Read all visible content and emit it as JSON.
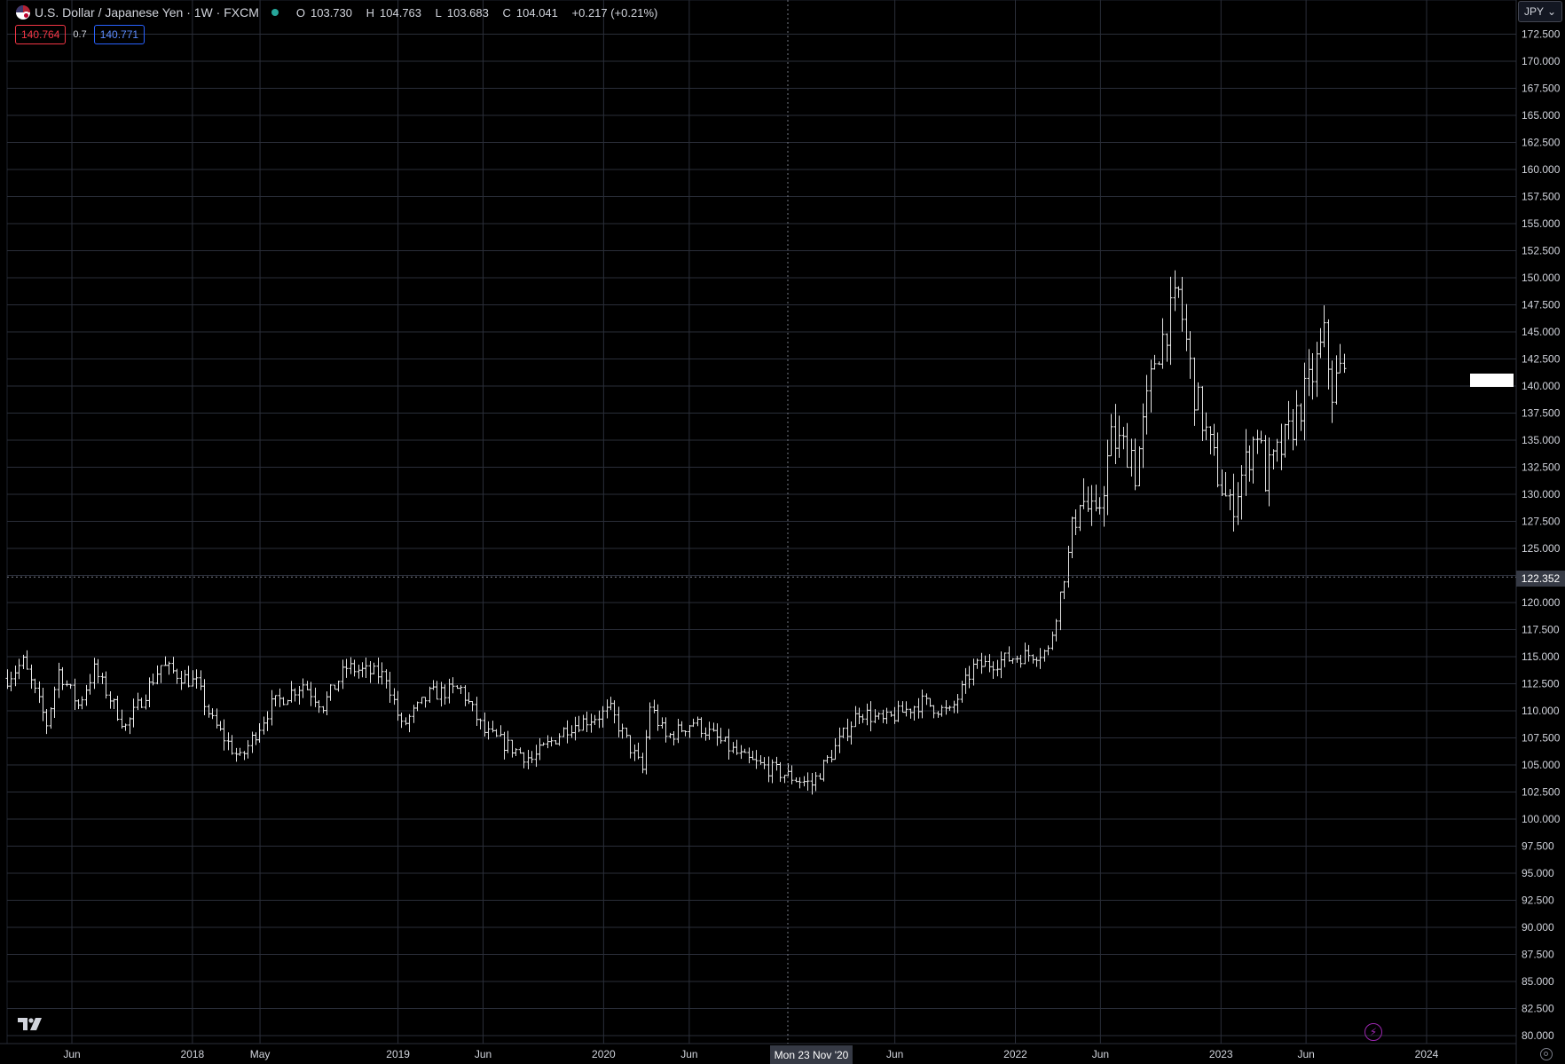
{
  "legend": {
    "title": "U.S. Dollar / Japanese Yen · 1W · FXCM",
    "open_label": "O",
    "open": "103.730",
    "high_label": "H",
    "high": "104.763",
    "low_label": "L",
    "low": "103.683",
    "close_label": "C",
    "close": "104.041",
    "change": "+0.217 (+0.21%)",
    "flag_icon": "usd-jpy-flag-icon"
  },
  "quote": {
    "sell": "140.764",
    "spread": "0.7",
    "buy": "140.771"
  },
  "currency_selector": {
    "label": "JPY",
    "icon": "chevron-down-icon"
  },
  "crosshair": {
    "price": "122.352",
    "date": "Mon 23 Nov '20"
  },
  "colors": {
    "background": "#000000",
    "grid": "#2a2e39",
    "bars": "#e6e6e6",
    "axis_text": "#d1d4dc",
    "crosshair_label": "#363a45"
  },
  "chart_data": {
    "type": "ohlc",
    "interval": "1W",
    "ylim": [
      80,
      173.5
    ],
    "y_ticks": [
      "80.000",
      "82.500",
      "85.000",
      "87.500",
      "90.000",
      "92.500",
      "95.000",
      "97.500",
      "100.000",
      "102.500",
      "105.000",
      "107.500",
      "110.000",
      "112.500",
      "115.000",
      "117.500",
      "120.000",
      "122.500",
      "125.000",
      "127.500",
      "130.000",
      "132.500",
      "135.000",
      "137.500",
      "140.000",
      "142.500",
      "145.000",
      "147.500",
      "150.000",
      "152.500",
      "155.000",
      "157.500",
      "160.000",
      "162.500",
      "165.000",
      "167.500",
      "170.000",
      "172.500"
    ],
    "x_ticks": [
      {
        "label": "Jun",
        "date": "2017-06-01"
      },
      {
        "label": "2018",
        "date": "2018-01-01"
      },
      {
        "label": "May",
        "date": "2018-05-01"
      },
      {
        "label": "2019",
        "date": "2019-01-01"
      },
      {
        "label": "Jun",
        "date": "2019-06-01"
      },
      {
        "label": "2020",
        "date": "2020-01-01"
      },
      {
        "label": "Jun",
        "date": "2020-06-01"
      },
      {
        "label": "Jun",
        "date": "2021-06-01"
      },
      {
        "label": "2022",
        "date": "2022-01-01"
      },
      {
        "label": "Jun",
        "date": "2022-06-01"
      },
      {
        "label": "2023",
        "date": "2023-01-01"
      },
      {
        "label": "Jun",
        "date": "2023-06-01"
      },
      {
        "label": "2024",
        "date": "2024-01-01"
      }
    ],
    "x_range": [
      "2017-02-06",
      "2024-03-04"
    ],
    "crosshair": {
      "date": "2020-11-23",
      "price": 122.352
    },
    "anchors": [
      [
        "2017-02-06",
        113.0
      ],
      [
        "2017-03-06",
        114.5
      ],
      [
        "2017-04-17",
        108.8
      ],
      [
        "2017-05-08",
        113.7
      ],
      [
        "2017-06-12",
        110.5
      ],
      [
        "2017-07-10",
        113.8
      ],
      [
        "2017-09-04",
        108.5
      ],
      [
        "2017-11-06",
        114.2
      ],
      [
        "2017-12-11",
        113.2
      ],
      [
        "2018-01-08",
        112.5
      ],
      [
        "2018-02-05",
        109.0
      ],
      [
        "2018-03-26",
        105.5
      ],
      [
        "2018-05-21",
        110.5
      ],
      [
        "2018-07-16",
        112.5
      ],
      [
        "2018-08-20",
        110.5
      ],
      [
        "2018-10-01",
        114.0
      ],
      [
        "2018-12-10",
        113.2
      ],
      [
        "2019-01-07",
        108.5
      ],
      [
        "2019-02-25",
        111.5
      ],
      [
        "2019-04-22",
        112.0
      ],
      [
        "2019-06-03",
        108.0
      ],
      [
        "2019-08-26",
        105.5
      ],
      [
        "2019-10-28",
        108.5
      ],
      [
        "2020-01-13",
        110.0
      ],
      [
        "2020-03-09",
        104.5
      ],
      [
        "2020-03-23",
        110.5
      ],
      [
        "2020-04-20",
        107.5
      ],
      [
        "2020-06-08",
        109.0
      ],
      [
        "2020-09-07",
        105.5
      ],
      [
        "2020-11-23",
        104.0
      ],
      [
        "2021-01-04",
        103.2
      ],
      [
        "2021-03-29",
        110.0
      ],
      [
        "2021-05-10",
        109.0
      ],
      [
        "2021-07-19",
        110.8
      ],
      [
        "2021-09-06",
        109.8
      ],
      [
        "2021-10-18",
        114.0
      ],
      [
        "2022-01-03",
        115.0
      ],
      [
        "2022-02-28",
        115.5
      ],
      [
        "2022-03-28",
        122.5
      ],
      [
        "2022-04-25",
        130.0
      ],
      [
        "2022-05-23",
        127.2
      ],
      [
        "2022-06-20",
        135.0
      ],
      [
        "2022-07-25",
        134.0
      ],
      [
        "2022-08-01",
        132.0
      ],
      [
        "2022-09-05",
        142.5
      ],
      [
        "2022-10-17",
        148.5
      ],
      [
        "2022-11-14",
        139.5
      ],
      [
        "2022-12-19",
        133.0
      ],
      [
        "2023-01-16",
        128.5
      ],
      [
        "2023-03-06",
        136.0
      ],
      [
        "2023-03-20",
        131.5
      ],
      [
        "2023-05-01",
        135.5
      ],
      [
        "2023-06-12",
        141.0
      ],
      [
        "2023-07-03",
        144.5
      ],
      [
        "2023-07-17",
        139.5
      ],
      [
        "2023-07-31",
        141.5
      ],
      [
        "2023-08-07",
        140.8
      ]
    ]
  },
  "logo": {
    "name": "tradingview-logo-icon",
    "text": "17"
  },
  "footer_icons": [
    "lightning-icon",
    "settings-icon"
  ]
}
